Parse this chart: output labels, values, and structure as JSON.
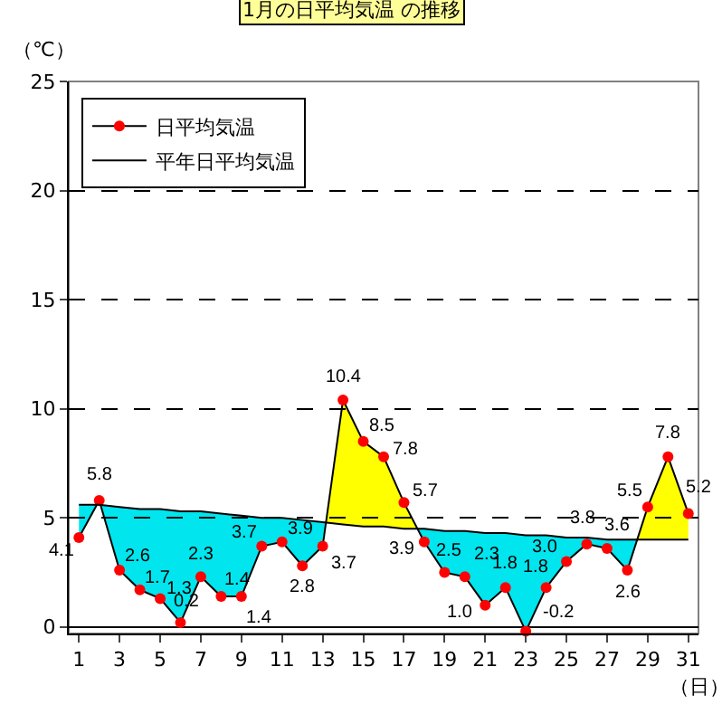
{
  "chart_data": {
    "type": "line",
    "title": "1月の日平均気温 の推移",
    "xlabel": "（日）",
    "ylabel": "（℃）",
    "x": [
      1,
      2,
      3,
      4,
      5,
      6,
      7,
      8,
      9,
      10,
      11,
      12,
      13,
      14,
      15,
      16,
      17,
      18,
      19,
      20,
      21,
      22,
      23,
      24,
      25,
      26,
      27,
      28,
      29,
      30,
      31
    ],
    "series": [
      {
        "name": "日平均気温",
        "color": "#ff0000",
        "marker": "circle",
        "values": [
          4.1,
          5.8,
          2.6,
          1.7,
          1.3,
          0.2,
          2.3,
          1.4,
          1.4,
          3.7,
          3.9,
          2.8,
          3.7,
          10.4,
          8.5,
          7.8,
          5.7,
          3.9,
          2.5,
          2.3,
          1.0,
          1.8,
          -0.2,
          1.8,
          3.0,
          3.8,
          3.6,
          2.6,
          5.5,
          7.8,
          5.2
        ],
        "value_labels": [
          "4.1",
          "5.8",
          "2.6",
          "1.7",
          "1.3",
          "0.2",
          "2.3",
          "1.4",
          "1.4",
          "3.7",
          "3.9",
          "2.8",
          "3.7",
          "10.4",
          "8.5",
          "7.8",
          "5.7",
          "3.9",
          "2.5",
          "2.3",
          "1.0",
          "1.8",
          "-0.2",
          "1.8",
          "3.0",
          "3.8",
          "3.6",
          "2.6",
          "5.5",
          "7.8",
          "5.2"
        ]
      },
      {
        "name": "平年日平均気温",
        "color": "#000000",
        "marker": "none",
        "values": [
          5.6,
          5.6,
          5.5,
          5.4,
          5.4,
          5.3,
          5.3,
          5.2,
          5.1,
          5.0,
          5.0,
          4.9,
          4.8,
          4.7,
          4.6,
          4.6,
          4.5,
          4.5,
          4.4,
          4.4,
          4.3,
          4.3,
          4.2,
          4.2,
          4.1,
          4.1,
          4.0,
          4.0,
          4.0,
          4.0,
          4.0
        ]
      }
    ],
    "xlim": [
      0.5,
      31.5
    ],
    "xticks": [
      1,
      3,
      5,
      7,
      9,
      11,
      13,
      15,
      17,
      19,
      21,
      23,
      25,
      27,
      29,
      31
    ],
    "ylim": [
      -0.3,
      25
    ],
    "yticks": [
      0,
      5,
      10,
      15,
      20,
      25
    ],
    "grid": "y",
    "legend": "top left",
    "line_style": "solid"
  }
}
